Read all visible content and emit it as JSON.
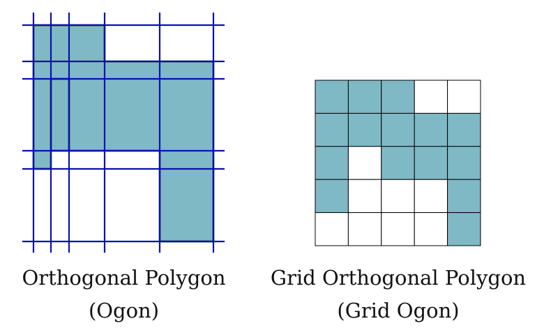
{
  "colors": {
    "fill": "#7fb9c6",
    "outline": "#000000",
    "grid_lines": "#0a10b0",
    "cell_border": "#000000",
    "empty_cell": "#ffffff"
  },
  "left_figure": {
    "title": "Orthogonal Polygon",
    "subtitle": "(Ogon)"
  },
  "right_figure": {
    "title": "Grid Orthogonal Polygon",
    "subtitle": "(Grid Ogon)",
    "rows": 5,
    "cols": 5,
    "cells": [
      [
        1,
        1,
        1,
        0,
        0
      ],
      [
        1,
        1,
        1,
        1,
        1
      ],
      [
        1,
        0,
        1,
        1,
        1
      ],
      [
        1,
        0,
        0,
        0,
        1
      ],
      [
        0,
        0,
        0,
        0,
        1
      ]
    ]
  }
}
